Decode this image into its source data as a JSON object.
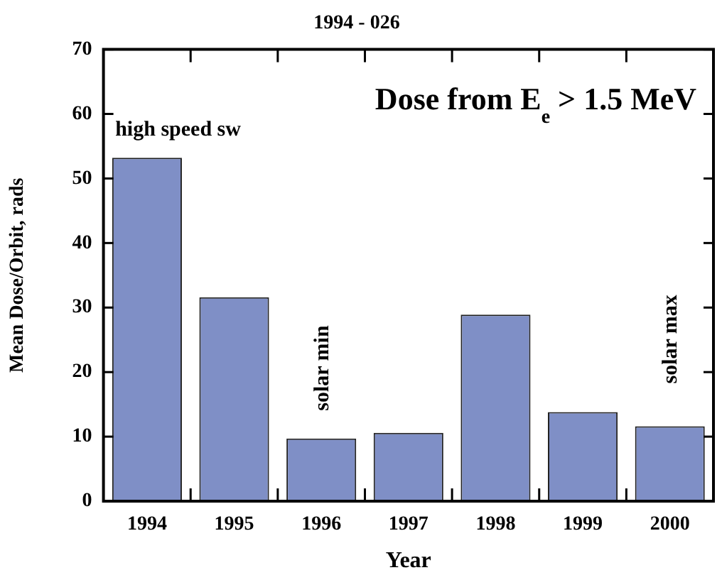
{
  "chart_data": {
    "type": "bar",
    "title": "1994 - 026",
    "xlabel": "Year",
    "ylabel": "Mean Dose/Orbit, rads",
    "categories": [
      "1994",
      "1995",
      "1996",
      "1997",
      "1998",
      "1999",
      "2000"
    ],
    "values": [
      53.2,
      31.6,
      9.7,
      10.6,
      28.9,
      13.8,
      11.6
    ],
    "color": "#7f8fc6",
    "ylim": [
      0,
      70
    ],
    "yticks": [
      0,
      10,
      20,
      30,
      40,
      50,
      60,
      70
    ],
    "grid": false,
    "legend": false,
    "annotations": [
      "Dose from E$_{e}$ > 1.5 MeV",
      "high speed sw",
      "solar min",
      "solar max"
    ]
  }
}
